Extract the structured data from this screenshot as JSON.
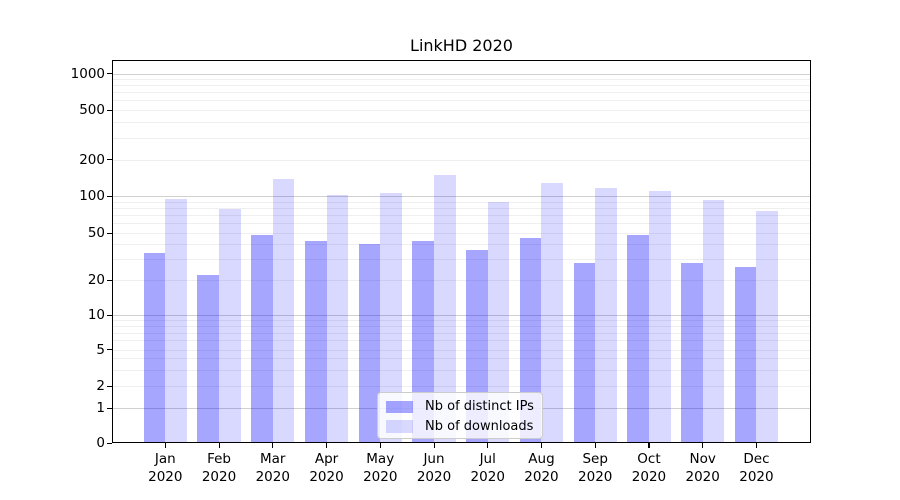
{
  "chart_data": {
    "type": "bar",
    "title": "LinkHD 2020",
    "categories": [
      "Jan",
      "Feb",
      "Mar",
      "Apr",
      "May",
      "Jun",
      "Jul",
      "Aug",
      "Sep",
      "Oct",
      "Nov",
      "Dec"
    ],
    "category_year": "2020",
    "series": [
      {
        "name": "Nb of distinct IPs",
        "color": "rgba(0,0,255,0.35)",
        "values": [
          34,
          22,
          48,
          43,
          40,
          43,
          36,
          45,
          28,
          48,
          28,
          26
        ]
      },
      {
        "name": "Nb of downloads",
        "color": "rgba(0,0,255,0.15)",
        "values": [
          94,
          78,
          138,
          102,
          105,
          150,
          90,
          127,
          116,
          110,
          92,
          75
        ]
      }
    ],
    "y_axis": {
      "scale": "symlog",
      "ticks": [
        1000,
        500,
        200,
        100,
        50,
        20,
        10,
        5,
        2,
        1,
        0
      ],
      "tick_labels": [
        "1000",
        "500",
        "200",
        "100",
        "50",
        "20",
        "10",
        "5",
        "2",
        "1",
        "0"
      ]
    },
    "grid": "horizontal log major+minor",
    "legend_position": "lower center"
  },
  "legend": {
    "items": [
      {
        "label": "Nb of distinct IPs"
      },
      {
        "label": "Nb of downloads"
      }
    ]
  }
}
